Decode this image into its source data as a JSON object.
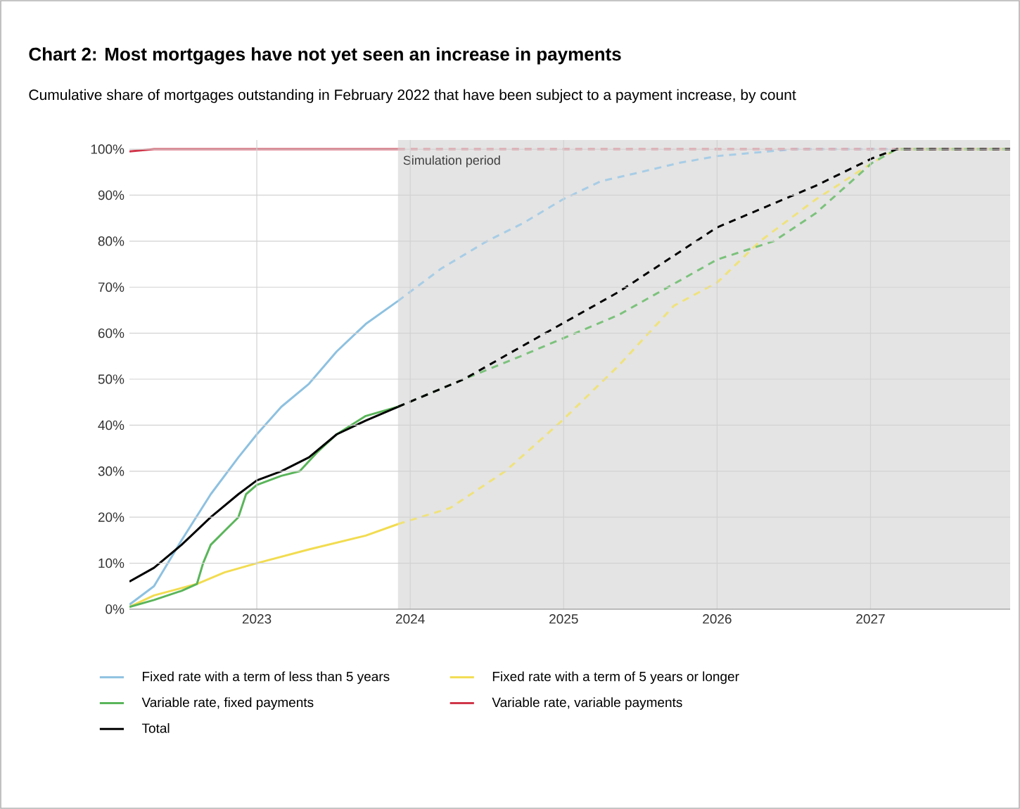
{
  "chart_data": {
    "type": "line",
    "title": "Chart 2: Most mortgages have not yet seen an increase in payments",
    "subtitle": "Cumulative share of mortgages outstanding in February 2022 that have been subject to a payment increase, by count",
    "xlim": [
      2022.17,
      2027.91
    ],
    "ylim": [
      0,
      102
    ],
    "xticks": [
      2023,
      2024,
      2025,
      2026,
      2027
    ],
    "yticks": [
      {
        "value": 0,
        "label": "0%"
      },
      {
        "value": 10,
        "label": "10%"
      },
      {
        "value": 20,
        "label": "20%"
      },
      {
        "value": 30,
        "label": "30%"
      },
      {
        "value": 40,
        "label": "40%"
      },
      {
        "value": 50,
        "label": "50%"
      },
      {
        "value": 60,
        "label": "60%"
      },
      {
        "value": 70,
        "label": "70%"
      },
      {
        "value": 80,
        "label": "80%"
      },
      {
        "value": 90,
        "label": "90%"
      },
      {
        "value": 100,
        "label": "100%"
      }
    ],
    "grid": true,
    "legend": "bottom",
    "marker": "none",
    "bands": [
      {
        "axis": "x",
        "from": 2023.92,
        "to": 2027.91,
        "label": "Simulation period",
        "color": "#e4e4e4"
      }
    ],
    "series": [
      {
        "name": "Fixed rate with a term of less than 5 years",
        "color": "#8ec1e0",
        "line_style": "solid",
        "x": [
          2022.17,
          2022.33,
          2022.51,
          2022.7,
          2022.88,
          2023.0,
          2023.16,
          2023.34,
          2023.52,
          2023.71,
          2023.92
        ],
        "values": [
          1,
          5,
          15,
          25,
          33,
          38,
          44,
          49,
          56,
          62,
          67
        ]
      },
      {
        "name": "Fixed rate with a term of 5 years or longer",
        "color": "#f2dc50",
        "line_style": "solid",
        "x": [
          2022.17,
          2022.33,
          2022.61,
          2022.79,
          2023.0,
          2023.34,
          2023.71,
          2023.92
        ],
        "values": [
          0.5,
          3,
          5.5,
          8,
          10,
          13,
          16,
          18.5
        ]
      },
      {
        "name": "Variable rate, fixed payments",
        "color": "#5ab55a",
        "line_style": "solid",
        "x": [
          2022.17,
          2022.33,
          2022.51,
          2022.61,
          2022.65,
          2022.7,
          2022.79,
          2022.88,
          2022.93,
          2023.0,
          2023.16,
          2023.28,
          2023.39,
          2023.52,
          2023.71,
          2023.92
        ],
        "values": [
          0.5,
          2,
          4,
          5.5,
          10,
          14,
          17,
          20,
          25,
          27,
          29,
          30,
          34,
          38,
          42,
          44
        ]
      },
      {
        "name": "Variable rate, variable payments",
        "color": "#d0364a",
        "line_style": "solid",
        "x": [
          2022.17,
          2022.33,
          2023.0,
          2023.92
        ],
        "values": [
          99.5,
          100,
          100,
          100
        ]
      },
      {
        "name": "Total",
        "color": "#000000",
        "line_style": "solid",
        "x": [
          2022.17,
          2022.33,
          2022.51,
          2022.7,
          2022.88,
          2023.0,
          2023.16,
          2023.34,
          2023.52,
          2023.71,
          2023.92
        ],
        "values": [
          6,
          9,
          14,
          20,
          25,
          28,
          30,
          33,
          38,
          41,
          44
        ]
      },
      {
        "color": "#a8cde6",
        "line_style": "dashed",
        "x": [
          2023.92,
          2024.2,
          2024.5,
          2024.74,
          2024.99,
          2025.24,
          2025.5,
          2025.75,
          2026.0,
          2026.5,
          2027.91
        ],
        "values": [
          67,
          74,
          80,
          84,
          89,
          93,
          95,
          97,
          98.5,
          100,
          100
        ]
      },
      {
        "color": "#f0e27a",
        "line_style": "dashed",
        "x": [
          2023.92,
          2024.26,
          2024.62,
          2024.99,
          2025.36,
          2025.72,
          2026.0,
          2026.28,
          2026.64,
          2027.01,
          2027.17,
          2027.91
        ],
        "values": [
          18.5,
          22,
          30,
          41,
          53,
          66,
          71,
          80,
          89,
          97,
          100,
          100
        ]
      },
      {
        "color": "#7cc27c",
        "line_style": "dashed",
        "x": [
          2023.92,
          2024.35,
          2024.72,
          2025.36,
          2026.0,
          2026.37,
          2026.64,
          2027.01,
          2027.17,
          2027.91
        ],
        "values": [
          44,
          50,
          55,
          64,
          76,
          80,
          86,
          97,
          100,
          100
        ]
      },
      {
        "color": "#e08a96",
        "line_style": "dashed",
        "x": [
          2023.92,
          2027.91
        ],
        "values": [
          100,
          100
        ]
      },
      {
        "color": "#000000",
        "line_style": "dashed",
        "x": [
          2023.92,
          2024.35,
          2024.72,
          2025.36,
          2026.0,
          2026.64,
          2027.01,
          2027.17,
          2027.91
        ],
        "values": [
          44,
          50,
          57,
          69,
          83,
          92,
          98,
          100,
          100
        ]
      }
    ]
  }
}
